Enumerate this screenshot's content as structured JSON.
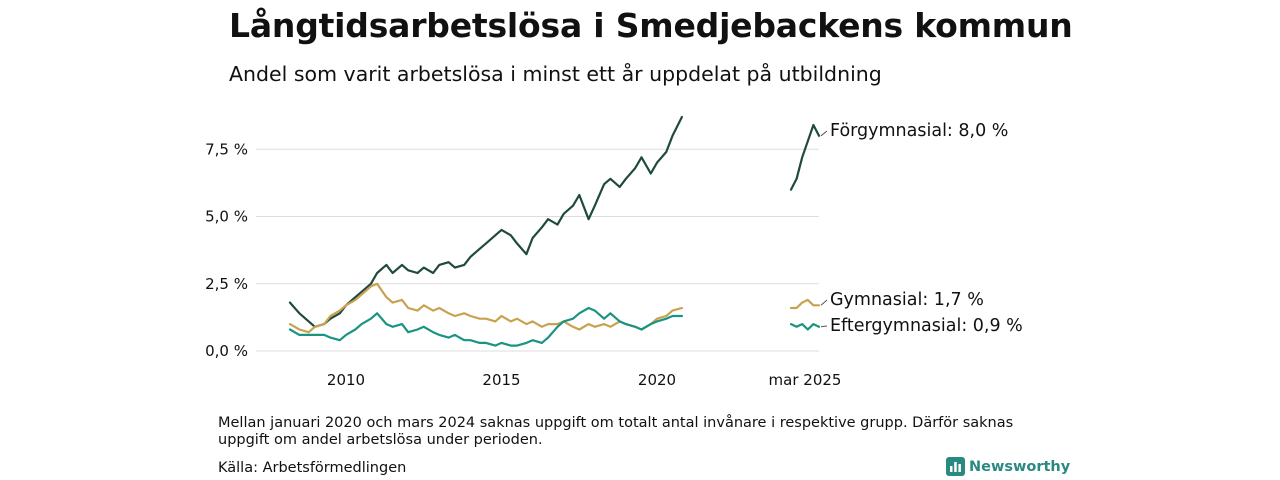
{
  "title": "Långtidsarbetslösa i Smedjebackens kommun",
  "subtitle": "Andel som varit arbetslösa i minst ett år uppdelat på utbildning",
  "note": "Mellan januari 2020 och mars 2024 saknas uppgift om totalt antal invånare i respektive grupp. Därför saknas uppgift om andel arbetslösa under perioden.",
  "source": "Källa: Arbetsförmedlingen",
  "brand": {
    "name": "Newsworthy",
    "icon": "newsworthy-logo-icon"
  },
  "colors": {
    "forgymnasial": "#1f4a40",
    "gymnasial": "#c9a24f",
    "eftergymnasial": "#1a9482",
    "grid": "#dddddd"
  },
  "chart_data": {
    "type": "line",
    "title": "Långtidsarbetslösa i Smedjebackens kommun",
    "subtitle": "Andel som varit arbetslösa i minst ett år uppdelat på utbildning",
    "xlabel": "",
    "ylabel": "",
    "ylim": [
      0,
      9
    ],
    "y_ticks": [
      0,
      2.5,
      5,
      7.5
    ],
    "y_tick_labels": [
      "0,0 %",
      "2,5 %",
      "5,0 %",
      "7,5 %"
    ],
    "x_ticks": [
      2010,
      2015,
      2020
    ],
    "x_tick_labels": [
      "2010",
      "2015",
      "2020"
    ],
    "second_panel_label": "mar 2025",
    "grid": true,
    "legend": "right, at line ends",
    "series": [
      {
        "name": "Förgymnasial",
        "end_label": "Förgymnasial: 8,0 %",
        "color": "#1f4a40",
        "points": [
          [
            2008.2,
            1.8
          ],
          [
            2008.5,
            1.4
          ],
          [
            2008.8,
            1.1
          ],
          [
            2009.0,
            0.9
          ],
          [
            2009.3,
            1.0
          ],
          [
            2009.5,
            1.2
          ],
          [
            2009.8,
            1.4
          ],
          [
            2010.0,
            1.7
          ],
          [
            2010.3,
            2.0
          ],
          [
            2010.5,
            2.2
          ],
          [
            2010.8,
            2.5
          ],
          [
            2011.0,
            2.9
          ],
          [
            2011.3,
            3.2
          ],
          [
            2011.5,
            2.9
          ],
          [
            2011.8,
            3.2
          ],
          [
            2012.0,
            3.0
          ],
          [
            2012.3,
            2.9
          ],
          [
            2012.5,
            3.1
          ],
          [
            2012.8,
            2.9
          ],
          [
            2013.0,
            3.2
          ],
          [
            2013.3,
            3.3
          ],
          [
            2013.5,
            3.1
          ],
          [
            2013.8,
            3.2
          ],
          [
            2014.0,
            3.5
          ],
          [
            2014.3,
            3.8
          ],
          [
            2014.5,
            4.0
          ],
          [
            2014.8,
            4.3
          ],
          [
            2015.0,
            4.5
          ],
          [
            2015.3,
            4.3
          ],
          [
            2015.5,
            4.0
          ],
          [
            2015.8,
            3.6
          ],
          [
            2016.0,
            4.2
          ],
          [
            2016.3,
            4.6
          ],
          [
            2016.5,
            4.9
          ],
          [
            2016.8,
            4.7
          ],
          [
            2017.0,
            5.1
          ],
          [
            2017.3,
            5.4
          ],
          [
            2017.5,
            5.8
          ],
          [
            2017.8,
            4.9
          ],
          [
            2018.0,
            5.4
          ],
          [
            2018.3,
            6.2
          ],
          [
            2018.5,
            6.4
          ],
          [
            2018.8,
            6.1
          ],
          [
            2019.0,
            6.4
          ],
          [
            2019.3,
            6.8
          ],
          [
            2019.5,
            7.2
          ],
          [
            2019.8,
            6.6
          ],
          [
            2020.0,
            7.0
          ],
          [
            2020.3,
            7.4
          ],
          [
            2020.5,
            8.0
          ],
          [
            2020.8,
            8.7
          ]
        ],
        "points_2025": [
          [
            0,
            6.0
          ],
          [
            0.2,
            6.4
          ],
          [
            0.4,
            7.2
          ],
          [
            0.6,
            7.8
          ],
          [
            0.8,
            8.4
          ],
          [
            1.0,
            8.0
          ]
        ]
      },
      {
        "name": "Gymnasial",
        "end_label": "Gymnasial: 1,7 %",
        "color": "#c9a24f",
        "points": [
          [
            2008.2,
            1.0
          ],
          [
            2008.5,
            0.8
          ],
          [
            2008.8,
            0.7
          ],
          [
            2009.0,
            0.9
          ],
          [
            2009.3,
            1.0
          ],
          [
            2009.5,
            1.3
          ],
          [
            2009.8,
            1.5
          ],
          [
            2010.0,
            1.7
          ],
          [
            2010.3,
            1.9
          ],
          [
            2010.5,
            2.1
          ],
          [
            2010.8,
            2.4
          ],
          [
            2011.0,
            2.5
          ],
          [
            2011.3,
            2.0
          ],
          [
            2011.5,
            1.8
          ],
          [
            2011.8,
            1.9
          ],
          [
            2012.0,
            1.6
          ],
          [
            2012.3,
            1.5
          ],
          [
            2012.5,
            1.7
          ],
          [
            2012.8,
            1.5
          ],
          [
            2013.0,
            1.6
          ],
          [
            2013.3,
            1.4
          ],
          [
            2013.5,
            1.3
          ],
          [
            2013.8,
            1.4
          ],
          [
            2014.0,
            1.3
          ],
          [
            2014.3,
            1.2
          ],
          [
            2014.5,
            1.2
          ],
          [
            2014.8,
            1.1
          ],
          [
            2015.0,
            1.3
          ],
          [
            2015.3,
            1.1
          ],
          [
            2015.5,
            1.2
          ],
          [
            2015.8,
            1.0
          ],
          [
            2016.0,
            1.1
          ],
          [
            2016.3,
            0.9
          ],
          [
            2016.5,
            1.0
          ],
          [
            2016.8,
            1.0
          ],
          [
            2017.0,
            1.1
          ],
          [
            2017.3,
            0.9
          ],
          [
            2017.5,
            0.8
          ],
          [
            2017.8,
            1.0
          ],
          [
            2018.0,
            0.9
          ],
          [
            2018.3,
            1.0
          ],
          [
            2018.5,
            0.9
          ],
          [
            2018.8,
            1.1
          ],
          [
            2019.0,
            1.0
          ],
          [
            2019.3,
            0.9
          ],
          [
            2019.5,
            0.8
          ],
          [
            2019.8,
            1.0
          ],
          [
            2020.0,
            1.2
          ],
          [
            2020.3,
            1.3
          ],
          [
            2020.5,
            1.5
          ],
          [
            2020.8,
            1.6
          ]
        ],
        "points_2025": [
          [
            0,
            1.6
          ],
          [
            0.2,
            1.6
          ],
          [
            0.4,
            1.8
          ],
          [
            0.6,
            1.9
          ],
          [
            0.8,
            1.7
          ],
          [
            1.0,
            1.7
          ]
        ]
      },
      {
        "name": "Eftergymnasial",
        "end_label": "Eftergymnasial: 0,9 %",
        "color": "#1a9482",
        "points": [
          [
            2008.2,
            0.8
          ],
          [
            2008.5,
            0.6
          ],
          [
            2008.8,
            0.6
          ],
          [
            2009.0,
            0.6
          ],
          [
            2009.3,
            0.6
          ],
          [
            2009.5,
            0.5
          ],
          [
            2009.8,
            0.4
          ],
          [
            2010.0,
            0.6
          ],
          [
            2010.3,
            0.8
          ],
          [
            2010.5,
            1.0
          ],
          [
            2010.8,
            1.2
          ],
          [
            2011.0,
            1.4
          ],
          [
            2011.3,
            1.0
          ],
          [
            2011.5,
            0.9
          ],
          [
            2011.8,
            1.0
          ],
          [
            2012.0,
            0.7
          ],
          [
            2012.3,
            0.8
          ],
          [
            2012.5,
            0.9
          ],
          [
            2012.8,
            0.7
          ],
          [
            2013.0,
            0.6
          ],
          [
            2013.3,
            0.5
          ],
          [
            2013.5,
            0.6
          ],
          [
            2013.8,
            0.4
          ],
          [
            2014.0,
            0.4
          ],
          [
            2014.3,
            0.3
          ],
          [
            2014.5,
            0.3
          ],
          [
            2014.8,
            0.2
          ],
          [
            2015.0,
            0.3
          ],
          [
            2015.3,
            0.2
          ],
          [
            2015.5,
            0.2
          ],
          [
            2015.8,
            0.3
          ],
          [
            2016.0,
            0.4
          ],
          [
            2016.3,
            0.3
          ],
          [
            2016.5,
            0.5
          ],
          [
            2016.8,
            0.9
          ],
          [
            2017.0,
            1.1
          ],
          [
            2017.3,
            1.2
          ],
          [
            2017.5,
            1.4
          ],
          [
            2017.8,
            1.6
          ],
          [
            2018.0,
            1.5
          ],
          [
            2018.3,
            1.2
          ],
          [
            2018.5,
            1.4
          ],
          [
            2018.8,
            1.1
          ],
          [
            2019.0,
            1.0
          ],
          [
            2019.3,
            0.9
          ],
          [
            2019.5,
            0.8
          ],
          [
            2019.8,
            1.0
          ],
          [
            2020.0,
            1.1
          ],
          [
            2020.3,
            1.2
          ],
          [
            2020.5,
            1.3
          ],
          [
            2020.8,
            1.3
          ]
        ],
        "points_2025": [
          [
            0,
            1.0
          ],
          [
            0.2,
            0.9
          ],
          [
            0.4,
            1.0
          ],
          [
            0.6,
            0.8
          ],
          [
            0.8,
            1.0
          ],
          [
            1.0,
            0.9
          ]
        ]
      }
    ]
  }
}
